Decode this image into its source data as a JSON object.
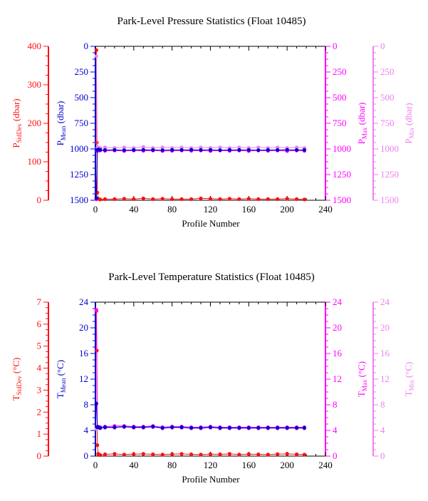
{
  "colors": {
    "stddev": "#ff1010",
    "mean": "#0000cc",
    "max": "#ff00ff",
    "min": "#ee80ee",
    "frame": "#000000"
  },
  "chart_data": [
    {
      "type": "scatter",
      "title": "Park-Level Pressure Statistics (Float 10485)",
      "xlabel": "Profile Number",
      "x_ticks": [
        "0",
        "40",
        "80",
        "120",
        "160",
        "200",
        "240"
      ],
      "xlim": [
        0,
        240
      ],
      "axes": {
        "stddev": {
          "label": "P",
          "sub": "StdDev",
          "unit": " (dbar)",
          "ticks": [
            "0",
            "100",
            "200",
            "300",
            "400"
          ],
          "lim": [
            0,
            400
          ],
          "side": "left-outer"
        },
        "mean": {
          "label": "P",
          "sub": "Mean",
          "unit": " (dbar)",
          "ticks": [
            "0",
            "250",
            "500",
            "750",
            "1000",
            "1250",
            "1500"
          ],
          "lim": [
            0,
            1500
          ],
          "inverted": true,
          "side": "left-inner"
        },
        "max": {
          "label": "P",
          "sub": "Max",
          "unit": " (dbar)",
          "ticks": [
            "0",
            "250",
            "500",
            "750",
            "1000",
            "1250",
            "1500"
          ],
          "lim": [
            0,
            1500
          ],
          "inverted": true,
          "side": "right-inner"
        },
        "min": {
          "label": "P",
          "sub": "Min",
          "unit": " (dbar)",
          "ticks": [
            "0",
            "250",
            "500",
            "750",
            "1000",
            "1250",
            "1500"
          ],
          "lim": [
            0,
            1500
          ],
          "inverted": true,
          "side": "right-outer"
        }
      },
      "series": [
        {
          "key": "stddev",
          "x": [
            1,
            1.5,
            2,
            3,
            5,
            10,
            20,
            30,
            40,
            50,
            60,
            70,
            80,
            90,
            100,
            110,
            120,
            130,
            140,
            150,
            160,
            170,
            180,
            190,
            200,
            210,
            218
          ],
          "y": [
            390,
            150,
            20,
            4,
            2,
            3,
            3,
            4,
            3,
            5,
            3,
            4,
            3,
            3,
            3,
            5,
            4,
            3,
            4,
            3,
            4,
            3,
            3,
            3,
            4,
            3,
            2
          ]
        },
        {
          "key": "mean",
          "x": [
            1,
            2,
            3,
            5,
            10,
            20,
            30,
            40,
            50,
            60,
            70,
            80,
            90,
            100,
            110,
            120,
            130,
            140,
            150,
            160,
            170,
            180,
            190,
            200,
            210,
            218
          ],
          "y": [
            1480,
            1010,
            1005,
            1008,
            1010,
            1010,
            1012,
            1010,
            1008,
            1010,
            1012,
            1010,
            1010,
            1008,
            1010,
            1010,
            1012,
            1010,
            1010,
            1010,
            1012,
            1010,
            1010,
            1008,
            1010,
            1010
          ]
        },
        {
          "key": "max",
          "x": [
            1,
            2,
            3,
            5,
            10,
            20,
            30,
            40,
            50,
            60,
            70,
            80,
            90,
            100,
            110,
            120,
            130,
            140,
            150,
            160,
            170,
            180,
            190,
            200,
            210,
            218
          ],
          "y": [
            1490,
            1020,
            1015,
            1015,
            1018,
            1015,
            1020,
            1015,
            1018,
            1015,
            1020,
            1018,
            1015,
            1018,
            1015,
            1020,
            1015,
            1018,
            1015,
            1020,
            1015,
            1018,
            1015,
            1020,
            1015,
            1018
          ]
        },
        {
          "key": "min",
          "x": [
            1,
            2,
            3,
            5,
            10,
            20,
            30,
            40,
            50,
            60,
            70,
            80,
            90,
            100,
            110,
            120,
            130,
            140,
            150,
            160,
            170,
            180,
            190,
            200,
            210,
            218
          ],
          "y": [
            95,
            990,
            985,
            990,
            985,
            990,
            985,
            990,
            980,
            990,
            985,
            990,
            985,
            990,
            985,
            990,
            985,
            990,
            985,
            990,
            985,
            990,
            985,
            990,
            985,
            990
          ]
        }
      ]
    },
    {
      "type": "scatter",
      "title": "Park-Level Temperature Statistics (Float 10485)",
      "xlabel": "Profile Number",
      "x_ticks": [
        "0",
        "40",
        "80",
        "120",
        "160",
        "200",
        "240"
      ],
      "xlim": [
        0,
        240
      ],
      "axes": {
        "stddev": {
          "label": "T",
          "sub": "StdDev",
          "unit": " (°C)",
          "ticks": [
            "0",
            "1",
            "2",
            "3",
            "4",
            "5",
            "6",
            "7"
          ],
          "lim": [
            0,
            7
          ],
          "side": "left-outer"
        },
        "mean": {
          "label": "T",
          "sub": "Mean",
          "unit": " (°C)",
          "ticks": [
            "0",
            "4",
            "8",
            "12",
            "16",
            "20",
            "24"
          ],
          "lim": [
            0,
            24
          ],
          "side": "left-inner"
        },
        "max": {
          "label": "T",
          "sub": "Max",
          "unit": " (°C)",
          "ticks": [
            "0",
            "4",
            "8",
            "12",
            "16",
            "20",
            "24"
          ],
          "lim": [
            0,
            24
          ],
          "side": "right-inner"
        },
        "min": {
          "label": "T",
          "sub": "Min",
          "unit": " (°C)",
          "ticks": [
            "0",
            "4",
            "8",
            "12",
            "16",
            "20",
            "24"
          ],
          "lim": [
            0,
            24
          ],
          "side": "right-outer"
        }
      },
      "series": [
        {
          "key": "stddev",
          "x": [
            1,
            1.5,
            2,
            3,
            5,
            10,
            20,
            30,
            40,
            50,
            60,
            70,
            80,
            90,
            100,
            110,
            120,
            130,
            140,
            150,
            160,
            170,
            180,
            190,
            200,
            210,
            218
          ],
          "y": [
            6.6,
            4.8,
            0.5,
            0.1,
            0.05,
            0.08,
            0.1,
            0.07,
            0.09,
            0.1,
            0.08,
            0.07,
            0.09,
            0.1,
            0.08,
            0.07,
            0.09,
            0.08,
            0.1,
            0.07,
            0.09,
            0.08,
            0.07,
            0.09,
            0.1,
            0.08,
            0.07
          ]
        },
        {
          "key": "mean",
          "x": [
            1,
            2,
            3,
            5,
            10,
            20,
            30,
            40,
            50,
            60,
            70,
            80,
            90,
            100,
            110,
            120,
            130,
            140,
            150,
            160,
            170,
            180,
            190,
            200,
            210,
            218
          ],
          "y": [
            8.2,
            4.5,
            4.5,
            4.4,
            4.5,
            4.5,
            4.6,
            4.5,
            4.5,
            4.6,
            4.4,
            4.5,
            4.5,
            4.4,
            4.4,
            4.5,
            4.4,
            4.4,
            4.4,
            4.4,
            4.4,
            4.4,
            4.4,
            4.4,
            4.4,
            4.4
          ]
        },
        {
          "key": "max",
          "x": [
            1,
            2,
            3,
            5,
            10,
            20,
            30,
            40,
            50,
            60,
            70,
            80,
            90,
            100,
            110,
            120,
            130,
            140,
            150,
            160,
            170,
            180,
            190,
            200,
            210,
            218
          ],
          "y": [
            22.8,
            4.6,
            4.6,
            4.5,
            4.6,
            4.7,
            4.7,
            4.6,
            4.6,
            4.7,
            4.5,
            4.6,
            4.6,
            4.5,
            4.5,
            4.6,
            4.5,
            4.5,
            4.5,
            4.5,
            4.5,
            4.5,
            4.5,
            4.5,
            4.5,
            4.5
          ]
        },
        {
          "key": "min",
          "x": [
            1,
            2,
            3,
            5,
            10,
            20,
            30,
            40,
            50,
            60,
            70,
            80,
            90,
            100,
            110,
            120,
            130,
            140,
            150,
            160,
            170,
            180,
            190,
            200,
            210,
            218
          ],
          "y": [
            4.2,
            4.4,
            4.4,
            4.3,
            4.4,
            4.4,
            4.5,
            4.4,
            4.4,
            4.5,
            4.3,
            4.4,
            4.4,
            4.3,
            4.3,
            4.4,
            4.3,
            4.3,
            4.3,
            4.3,
            4.3,
            4.3,
            4.3,
            4.3,
            4.3,
            4.3
          ]
        }
      ]
    }
  ]
}
